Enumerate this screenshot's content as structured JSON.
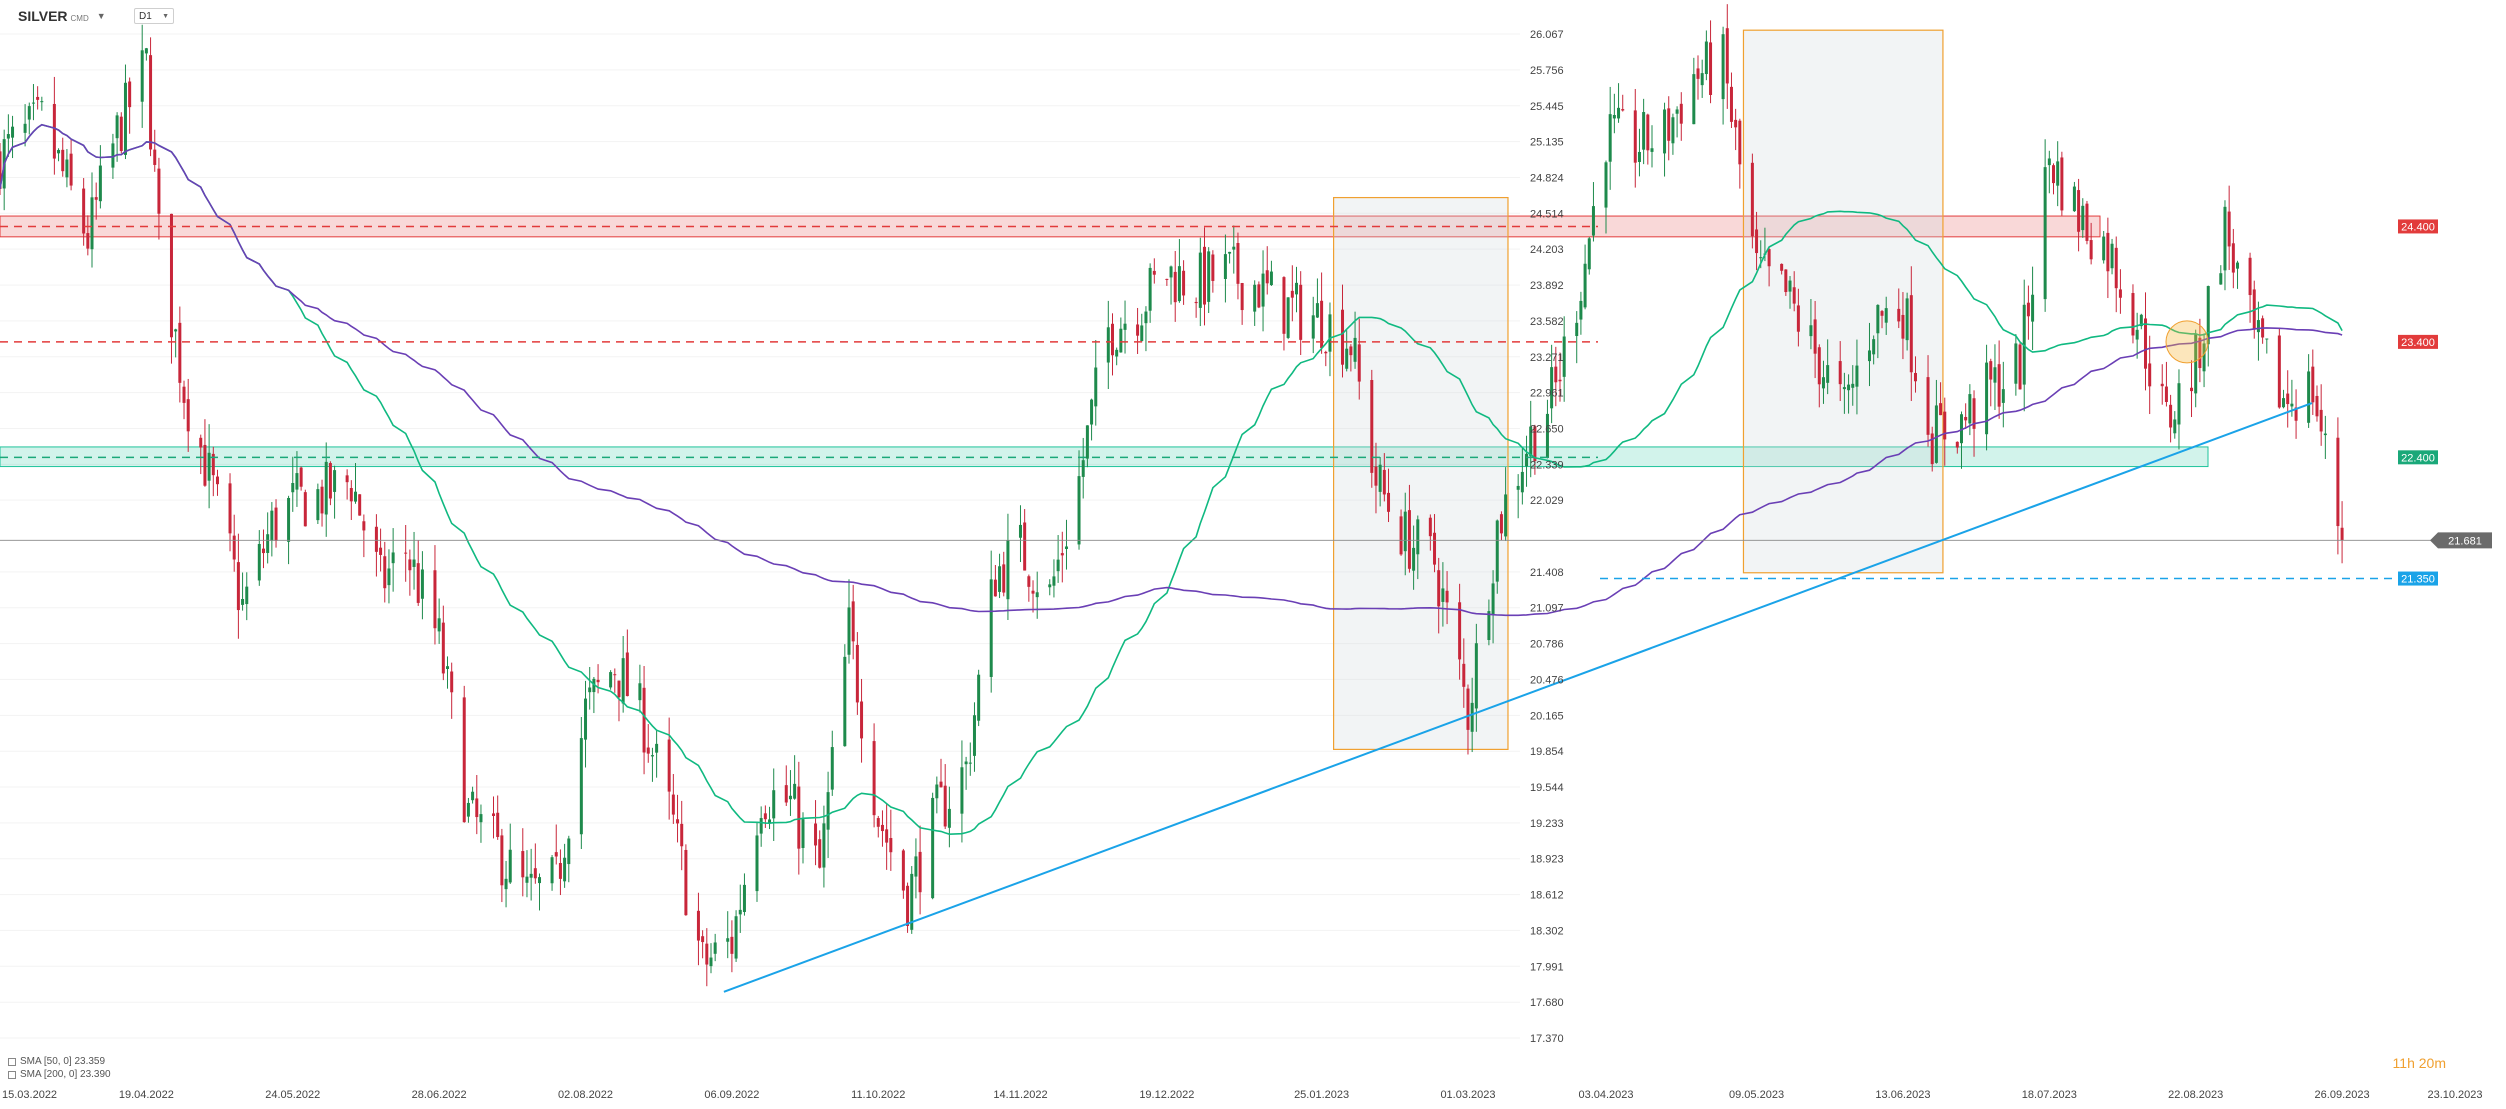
{
  "header": {
    "symbol": "SILVER",
    "source": "CMD",
    "timeframe": "D1"
  },
  "indicators": [
    {
      "label": "SMA [50, 0] 23.359",
      "color": "#10b981"
    },
    {
      "label": "SMA [200, 0] 23.390",
      "color": "#6a3fb5"
    }
  ],
  "timer": "11h 20m",
  "chart_data": {
    "type": "candlestick",
    "instrument": "SILVER",
    "timeframe": "D1",
    "x_tick_labels": [
      "15.03.2022",
      "19.04.2022",
      "24.05.2022",
      "28.06.2022",
      "02.08.2022",
      "06.09.2022",
      "11.10.2022",
      "14.11.2022",
      "19.12.2022",
      "25.01.2023",
      "01.03.2023",
      "03.04.2023",
      "09.05.2023",
      "13.06.2023",
      "18.07.2023",
      "22.08.2023",
      "26.09.2023",
      "23.10.2023"
    ],
    "y_tick_labels": [
      "26.067",
      "25.756",
      "25.445",
      "25.135",
      "24.824",
      "24.514",
      "24.203",
      "23.892",
      "23.582",
      "23.271",
      "22.961",
      "22.650",
      "22.339",
      "22.029",
      "21.408",
      "21.097",
      "20.786",
      "20.476",
      "20.165",
      "19.854",
      "19.544",
      "19.233",
      "18.923",
      "18.612",
      "18.302",
      "17.991",
      "17.680",
      "17.370"
    ],
    "ylim": [
      17.37,
      26.067
    ],
    "close_path_key": [
      [
        "15.03.2022",
        25.0
      ],
      [
        "25.03.2022",
        25.3
      ],
      [
        "05.04.2022",
        24.3
      ],
      [
        "12.04.2022",
        25.2
      ],
      [
        "19.04.2022",
        25.8
      ],
      [
        "22.04.2022",
        24.3
      ],
      [
        "28.04.2022",
        23.0
      ],
      [
        "05.05.2022",
        22.1
      ],
      [
        "12.05.2022",
        21.1
      ],
      [
        "19.05.2022",
        21.8
      ],
      [
        "24.05.2022",
        22.0
      ],
      [
        "02.06.2022",
        22.1
      ],
      [
        "07.06.2022",
        22.2
      ],
      [
        "14.06.2022",
        21.3
      ],
      [
        "20.06.2022",
        21.6
      ],
      [
        "28.06.2022",
        20.8
      ],
      [
        "05.07.2022",
        19.3
      ],
      [
        "12.07.2022",
        19.0
      ],
      [
        "19.07.2022",
        18.6
      ],
      [
        "26.07.2022",
        18.7
      ],
      [
        "02.08.2022",
        20.2
      ],
      [
        "09.08.2022",
        20.6
      ],
      [
        "16.08.2022",
        20.1
      ],
      [
        "23.08.2022",
        19.2
      ],
      [
        "30.08.2022",
        18.0
      ],
      [
        "06.09.2022",
        18.2
      ],
      [
        "13.09.2022",
        19.5
      ],
      [
        "20.09.2022",
        19.4
      ],
      [
        "27.09.2022",
        18.8
      ],
      [
        "04.10.2022",
        20.9
      ],
      [
        "11.10.2022",
        19.3
      ],
      [
        "18.10.2022",
        18.6
      ],
      [
        "25.10.2022",
        19.3
      ],
      [
        "01.11.2022",
        19.7
      ],
      [
        "08.11.2022",
        21.4
      ],
      [
        "14.11.2022",
        21.6
      ],
      [
        "21.11.2022",
        21.2
      ],
      [
        "28.11.2022",
        22.2
      ],
      [
        "05.12.2022",
        23.5
      ],
      [
        "12.12.2022",
        23.7
      ],
      [
        "19.12.2022",
        24.0
      ],
      [
        "26.12.2022",
        23.9
      ],
      [
        "02.01.2023",
        24.0
      ],
      [
        "09.01.2023",
        23.9
      ],
      [
        "16.01.2023",
        23.7
      ],
      [
        "25.01.2023",
        23.6
      ],
      [
        "01.02.2023",
        23.4
      ],
      [
        "07.02.2023",
        22.2
      ],
      [
        "14.02.2023",
        21.7
      ],
      [
        "21.02.2023",
        21.5
      ],
      [
        "01.03.2023",
        20.2
      ],
      [
        "08.03.2023",
        21.8
      ],
      [
        "15.03.2023",
        22.5
      ],
      [
        "22.03.2023",
        23.0
      ],
      [
        "29.03.2023",
        24.1
      ],
      [
        "03.04.2023",
        25.2
      ],
      [
        "10.04.2023",
        25.1
      ],
      [
        "17.04.2023",
        25.2
      ],
      [
        "24.04.2023",
        25.7
      ],
      [
        "01.05.2023",
        25.8
      ],
      [
        "09.05.2023",
        24.0
      ],
      [
        "16.05.2023",
        23.8
      ],
      [
        "23.05.2023",
        23.3
      ],
      [
        "30.05.2023",
        22.8
      ],
      [
        "06.06.2023",
        23.6
      ],
      [
        "13.06.2023",
        23.7
      ],
      [
        "20.06.2023",
        22.6
      ],
      [
        "27.06.2023",
        22.7
      ],
      [
        "04.07.2023",
        23.0
      ],
      [
        "11.07.2023",
        23.2
      ],
      [
        "18.07.2023",
        25.0
      ],
      [
        "25.07.2023",
        24.5
      ],
      [
        "01.08.2023",
        24.2
      ],
      [
        "08.08.2023",
        23.6
      ],
      [
        "15.08.2023",
        22.7
      ],
      [
        "22.08.2023",
        23.2
      ],
      [
        "29.08.2023",
        24.4
      ],
      [
        "05.09.2023",
        23.4
      ],
      [
        "12.09.2023",
        22.9
      ],
      [
        "19.09.2023",
        23.0
      ],
      [
        "26.09.2023",
        21.681
      ]
    ],
    "annotations": {
      "last_price": 21.681,
      "resistance_lines": [
        24.4,
        23.4
      ],
      "support_lines": [
        22.4
      ],
      "target_line": 21.35,
      "zones": [
        {
          "type": "resistance",
          "from": 24.31,
          "to": 24.49,
          "color": "#e23b3b"
        },
        {
          "type": "support",
          "from": 22.32,
          "to": 22.49,
          "color": "#1ec39b"
        }
      ],
      "highlight_boxes": [
        {
          "from": "25.01.2023",
          "to": "01.03.2023",
          "low": 19.87,
          "high": 24.65
        },
        {
          "from": "03.05.2023",
          "to": "13.06.2023",
          "low": 21.4,
          "high": 26.1
        }
      ],
      "trendline": {
        "from": [
          "06.09.2022",
          17.77
        ],
        "to": [
          "23.10.2023",
          22.87
        ]
      },
      "price_labels": [
        {
          "value": "24.400",
          "color": "#e23b3b"
        },
        {
          "value": "23.400",
          "color": "#e23b3b"
        },
        {
          "value": "22.400",
          "color": "#1aa879"
        },
        {
          "value": "21.681",
          "color": "#6b6b6b"
        },
        {
          "value": "21.350",
          "color": "#1aa3e8"
        }
      ]
    },
    "series": [
      {
        "name": "SMA [50, 0]",
        "color": "#10b981",
        "last": 23.359
      },
      {
        "name": "SMA [200, 0]",
        "color": "#6a3fb5",
        "last": 23.39
      }
    ]
  }
}
